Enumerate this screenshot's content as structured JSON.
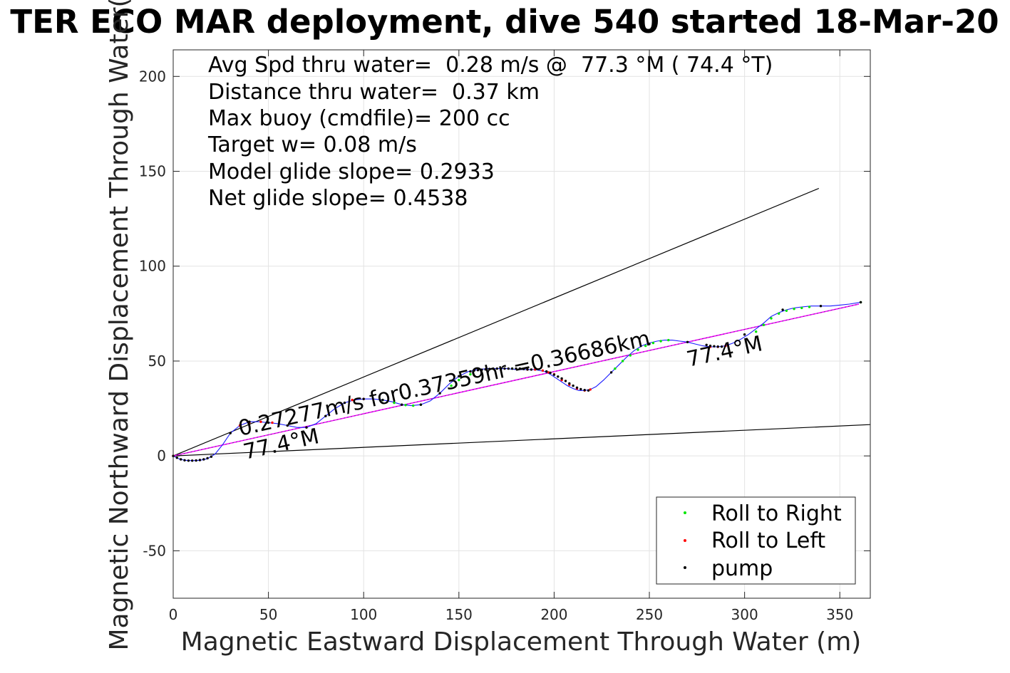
{
  "chart_data": {
    "type": "line",
    "title": "TER ECO MAR deployment, dive 540 started 18-Mar-20",
    "xlabel": "Magnetic Eastward Displacement Through Water (m)",
    "ylabel": "Magnetic Northward Displacement Through Water(",
    "xlim": [
      0,
      366
    ],
    "ylim": [
      -75,
      214
    ],
    "xticks": [
      0,
      50,
      100,
      150,
      200,
      250,
      300,
      350
    ],
    "yticks": [
      -50,
      0,
      50,
      100,
      150,
      200
    ],
    "grid": true,
    "info_lines": [
      "Avg Spd thru water=  0.28 m/s @  77.3 °M ( 74.4 °T)",
      "Distance thru water=  0.37 km",
      "Max buoy (cmdfile)= 200 cc",
      "Target w= 0.08 m/s",
      "Model glide slope= 0.2933",
      "Net glide slope= 0.4538"
    ],
    "annotations": {
      "speed_label": "0.27277m/s for0.37359hr =0.36686km",
      "heading_label_start": "77.4°M",
      "heading_label_end": "77.4°M"
    },
    "glide_slope_lines": [
      {
        "x": [
          0,
          339
        ],
        "y": [
          0,
          141
        ]
      },
      {
        "x": [
          0,
          366
        ],
        "y": [
          0,
          16.5
        ]
      }
    ],
    "net_line": {
      "x": [
        0,
        360
      ],
      "y": [
        0,
        80
      ]
    },
    "track": {
      "x": [
        0,
        3,
        6,
        10,
        14,
        18,
        22,
        26,
        30,
        35,
        40,
        45,
        50,
        55,
        60,
        65,
        70,
        75,
        80,
        85,
        90,
        95,
        100,
        105,
        110,
        115,
        120,
        125,
        130,
        135,
        140,
        145,
        150,
        155,
        160,
        165,
        170,
        175,
        180,
        185,
        190,
        195,
        198,
        201,
        204,
        207,
        210,
        213,
        216,
        219,
        222,
        226,
        230,
        234,
        238,
        242,
        246,
        250,
        254,
        258,
        262,
        266,
        270,
        274,
        278,
        282,
        286,
        290,
        294,
        298,
        302,
        306,
        310,
        314,
        318,
        322,
        326,
        330,
        335,
        340,
        345,
        350,
        355,
        361
      ],
      "y": [
        0,
        -1.5,
        -2.3,
        -2.5,
        -2.3,
        -1.5,
        1,
        6,
        12,
        16,
        18,
        18,
        17.5,
        17,
        16,
        15,
        15,
        17,
        21,
        25,
        28,
        29.5,
        30,
        30,
        29.5,
        28.5,
        27,
        26.5,
        27,
        29,
        33,
        38,
        42,
        44.5,
        45.5,
        46,
        46,
        46,
        45.5,
        45.5,
        45.5,
        44.5,
        43,
        41,
        39,
        37,
        35.5,
        34.5,
        34.5,
        35,
        36.5,
        40,
        44,
        48,
        52,
        55.5,
        58,
        59.5,
        60.5,
        61,
        61,
        60.5,
        60,
        59,
        58,
        57.5,
        57.5,
        58,
        59.5,
        61.5,
        64,
        67,
        70,
        73.5,
        75.5,
        77,
        78,
        78.5,
        79,
        79,
        79,
        79.5,
        80,
        81
      ]
    },
    "series": [
      {
        "name": "Roll to Right",
        "x": [
          110,
          116,
          122,
          126,
          130,
          146,
          150,
          156,
          172,
          178,
          232,
          236,
          240,
          244,
          248,
          252,
          256,
          260,
          306,
          310,
          314,
          318,
          322,
          326,
          330,
          334,
          361
        ],
        "y": [
          29.5,
          28,
          26.8,
          26.5,
          27,
          37,
          40,
          43,
          46,
          46,
          46,
          50,
          53,
          56,
          58,
          59.5,
          60.5,
          61,
          65.5,
          69,
          72.5,
          75,
          76.5,
          77.5,
          78,
          78.5,
          81
        ]
      },
      {
        "name": "Roll to Left",
        "x": [
          0,
          35,
          40,
          46,
          52,
          94,
          100,
          186,
          190,
          194,
          197,
          200,
          204,
          208,
          212,
          216,
          219,
          282,
          286,
          290
        ],
        "y": [
          0,
          16,
          17.5,
          18,
          17.5,
          29.5,
          30,
          45.5,
          45.5,
          45,
          44,
          43,
          40,
          37.5,
          35.5,
          34.5,
          35,
          57.5,
          57.5,
          58
        ]
      },
      {
        "name": "pump",
        "x": [
          0,
          2,
          4,
          6,
          8,
          10,
          12,
          14,
          16,
          18,
          20,
          30,
          40,
          50,
          60,
          70,
          80,
          90,
          100,
          110,
          120,
          130,
          140,
          150,
          156,
          158,
          160,
          162,
          164,
          166,
          168,
          170,
          172,
          174,
          176,
          178,
          180,
          182,
          184,
          186,
          188,
          196,
          198,
          200,
          202,
          204,
          206,
          208,
          210,
          212,
          214,
          216,
          218,
          230,
          250,
          270,
          280,
          282,
          284,
          286,
          288,
          300,
          320,
          340,
          361
        ],
        "y": [
          0,
          -1,
          -1.8,
          -2.3,
          -2.5,
          -2.5,
          -2.4,
          -2.2,
          -1.8,
          -1.2,
          -0.4,
          12,
          18,
          17.5,
          16,
          15,
          21,
          28,
          30,
          29.5,
          27,
          27,
          33,
          42,
          44.5,
          45,
          45.2,
          45.4,
          45.6,
          45.8,
          46,
          46,
          46,
          46,
          46,
          46,
          46,
          46,
          45.8,
          45.6,
          45.5,
          44.5,
          43.8,
          42.8,
          41.8,
          40.8,
          39.5,
          38.2,
          37,
          36,
          35.2,
          34.7,
          34.5,
          44,
          59,
          60,
          58.5,
          58,
          57.8,
          57.6,
          57.6,
          64,
          77,
          79,
          81
        ]
      }
    ],
    "colors": {
      "track": "#1a1aff",
      "glide_lines": "#000000",
      "net_line_a": "#ff00ff",
      "net_line_b": "#6a2a9a",
      "roll_right": "#00e600",
      "roll_left": "#ff0000",
      "pump": "#000000",
      "grid": "#e3e3e3"
    },
    "legend": {
      "position": "bottom-right",
      "entries": [
        "Roll to Right",
        "Roll to Left",
        "pump"
      ]
    }
  }
}
